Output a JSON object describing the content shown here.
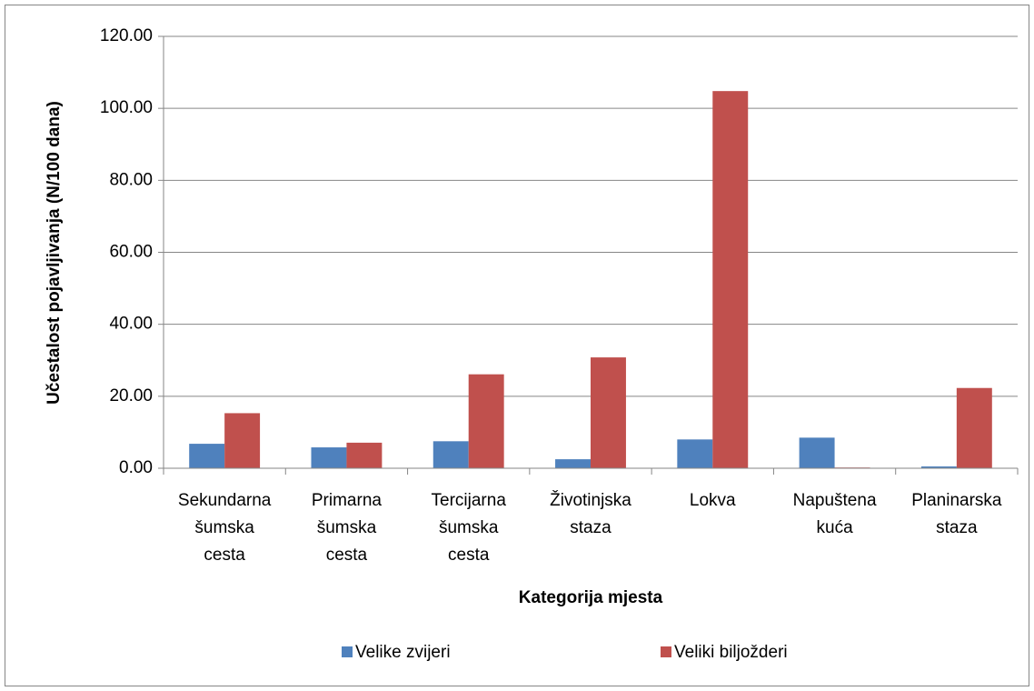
{
  "chart_data": {
    "type": "bar",
    "x_label": "Kategorija mjesta",
    "y_label": "Učestalost pojavljivanja (N/100 dana)",
    "categories": [
      "Sekundarna šumska cesta",
      "Primarna šumska cesta",
      "Tercijarna šumska cesta",
      "Životinjska staza",
      "Lokva",
      "Napuštena kuća",
      "Planinarska staza"
    ],
    "series": [
      {
        "name": "Velike zvijeri",
        "color": "#4f81bd",
        "values": [
          6.8,
          5.8,
          7.5,
          2.5,
          8.0,
          8.5,
          0.5
        ]
      },
      {
        "name": "Veliki biljožderi",
        "color": "#c0504d",
        "values": [
          15.3,
          7.1,
          26.1,
          30.8,
          104.8,
          0.2,
          22.3
        ]
      }
    ],
    "ylim": [
      0,
      120
    ],
    "yticks": [
      {
        "value": 0,
        "label": "0.00"
      },
      {
        "value": 20,
        "label": "20.00"
      },
      {
        "value": 40,
        "label": "40.00"
      },
      {
        "value": 60,
        "label": "60.00"
      },
      {
        "value": 80,
        "label": "80.00"
      },
      {
        "value": 100,
        "label": "100.00"
      },
      {
        "value": 120,
        "label": "120.00"
      }
    ],
    "grid": true,
    "legend": "bottom"
  }
}
